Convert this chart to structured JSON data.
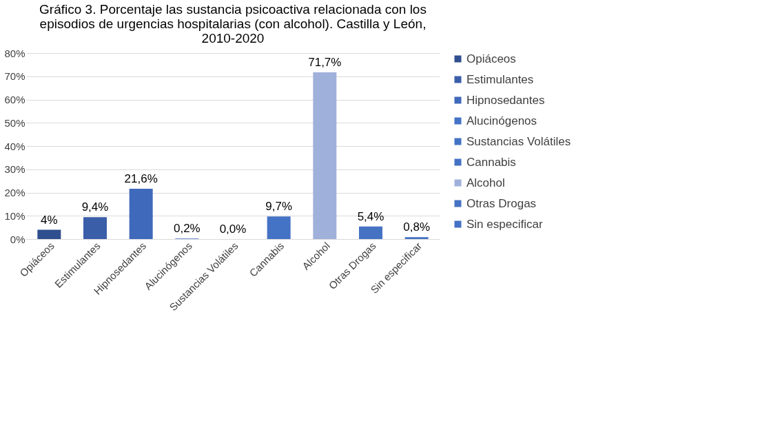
{
  "chart_data": {
    "type": "bar",
    "title": "Gráfico 3. Porcentaje las sustancia psicoactiva relacionada con los episodios de urgencias hospitalarias (con alcohol). Castilla y León, 2010-2020",
    "categories": [
      "Opiáceos",
      "Estimulantes",
      "Hipnosedantes",
      "Alucinógenos",
      "Sustancias Volátiles",
      "Cannabis",
      "Alcohol",
      "Otras Drogas",
      "Sin especificar"
    ],
    "series": [
      {
        "name": "Opiáceos",
        "color": "#2f4f8f",
        "values": [
          4,
          null,
          null,
          null,
          null,
          null,
          null,
          null,
          null
        ],
        "value_labels": [
          "4%",
          null,
          null,
          null,
          null,
          null,
          null,
          null,
          null
        ]
      },
      {
        "name": "Estimulantes",
        "color": "#3a5ea8",
        "values": [
          null,
          9.4,
          null,
          null,
          null,
          null,
          null,
          null,
          null
        ],
        "value_labels": [
          null,
          "9,4%",
          null,
          null,
          null,
          null,
          null,
          null,
          null
        ]
      },
      {
        "name": "Hipnosedantes",
        "color": "#3f69ba",
        "values": [
          null,
          null,
          21.6,
          null,
          null,
          null,
          null,
          null,
          null
        ],
        "value_labels": [
          null,
          null,
          "21,6%",
          null,
          null,
          null,
          null,
          null,
          null
        ]
      },
      {
        "name": "Alucinógenos",
        "color": "#4472c5",
        "values": [
          null,
          null,
          null,
          0.2,
          null,
          null,
          null,
          null,
          null
        ],
        "value_labels": [
          null,
          null,
          null,
          "0,2%",
          null,
          null,
          null,
          null,
          null
        ]
      },
      {
        "name": "Sustancias Volátiles",
        "color": "#4473c4",
        "values": [
          null,
          null,
          null,
          null,
          0,
          null,
          null,
          null,
          null
        ],
        "value_labels": [
          null,
          null,
          null,
          null,
          "0,0%",
          null,
          null,
          null,
          null
        ]
      },
      {
        "name": "Cannabis",
        "color": "#4472c4",
        "values": [
          null,
          null,
          null,
          null,
          null,
          9.7,
          null,
          null,
          null
        ],
        "value_labels": [
          null,
          null,
          null,
          null,
          null,
          "9,7%",
          null,
          null,
          null
        ]
      },
      {
        "name": "Alcohol",
        "color": "#9fb0db",
        "values": [
          null,
          null,
          null,
          null,
          null,
          null,
          71.7,
          null,
          null
        ],
        "value_labels": [
          null,
          null,
          null,
          null,
          null,
          null,
          "71,7%",
          null,
          null
        ]
      },
      {
        "name": "Otras Drogas",
        "color": "#4572c3",
        "values": [
          null,
          null,
          null,
          null,
          null,
          null,
          null,
          5.4,
          null
        ],
        "value_labels": [
          null,
          null,
          null,
          null,
          null,
          null,
          null,
          "5,4%",
          null
        ]
      },
      {
        "name": "Sin especificar",
        "color": "#4371c4",
        "values": [
          null,
          null,
          null,
          null,
          null,
          null,
          null,
          null,
          0.8
        ],
        "value_labels": [
          null,
          null,
          null,
          null,
          null,
          null,
          null,
          null,
          "0,8%"
        ]
      }
    ],
    "ylim": [
      0,
      80
    ],
    "yticks": [
      {
        "value": 0,
        "label": "0%"
      },
      {
        "value": 10,
        "label": "10%"
      },
      {
        "value": 20,
        "label": "20%"
      },
      {
        "value": 30,
        "label": "30%"
      },
      {
        "value": 40,
        "label": "40%"
      },
      {
        "value": 50,
        "label": "50%"
      },
      {
        "value": 60,
        "label": "60%"
      },
      {
        "value": 70,
        "label": "70%"
      },
      {
        "value": 80,
        "label": "80%"
      }
    ],
    "grid": "y",
    "legend": "right"
  }
}
